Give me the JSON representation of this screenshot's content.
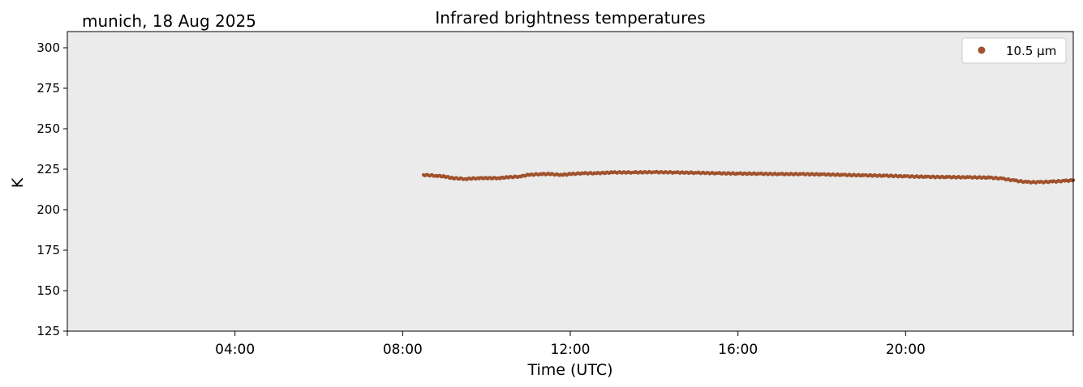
{
  "chart_data": {
    "type": "scatter",
    "title": "Infrared brightness temperatures",
    "subtitle": "munich, 18 Aug 2025",
    "xlabel": "Time (UTC)",
    "ylabel": "K",
    "xlim_hours": [
      0,
      24
    ],
    "ylim": [
      125,
      310
    ],
    "x_ticks": [
      {
        "hour": 4,
        "label": "04:00"
      },
      {
        "hour": 8,
        "label": "08:00"
      },
      {
        "hour": 12,
        "label": "12:00"
      },
      {
        "hour": 16,
        "label": "16:00"
      },
      {
        "hour": 20,
        "label": "20:00"
      }
    ],
    "y_ticks": [
      125,
      150,
      175,
      200,
      225,
      250,
      275,
      300
    ],
    "grid": false,
    "background_color": "#ebebeb",
    "legend": {
      "position": "top-right",
      "entries": [
        "10.5 µm"
      ]
    },
    "series": [
      {
        "name": "10.5 µm",
        "color": "#a0522d",
        "x_hours": [
          8.5,
          8.8,
          9.0,
          9.2,
          9.5,
          9.8,
          10.0,
          10.3,
          10.5,
          10.8,
          11.0,
          11.3,
          11.5,
          11.8,
          12.0,
          12.3,
          12.6,
          13.0,
          13.5,
          14.0,
          14.5,
          15.0,
          15.5,
          16.0,
          16.5,
          17.0,
          17.5,
          18.0,
          18.5,
          19.0,
          19.5,
          20.0,
          20.5,
          21.0,
          21.5,
          22.0,
          22.3,
          22.6,
          22.9,
          23.2,
          23.5,
          23.8,
          24.0
        ],
        "values": [
          221.5,
          221.0,
          220.5,
          219.5,
          219.0,
          219.5,
          219.5,
          219.5,
          220.0,
          220.5,
          221.5,
          222.0,
          222.0,
          221.5,
          222.0,
          222.5,
          222.5,
          223.0,
          223.0,
          223.2,
          223.0,
          222.8,
          222.5,
          222.3,
          222.2,
          222.0,
          222.0,
          221.8,
          221.5,
          221.2,
          221.0,
          220.6,
          220.3,
          220.1,
          220.0,
          219.8,
          219.2,
          218.0,
          217.0,
          217.0,
          217.3,
          217.8,
          218.2
        ]
      }
    ]
  }
}
